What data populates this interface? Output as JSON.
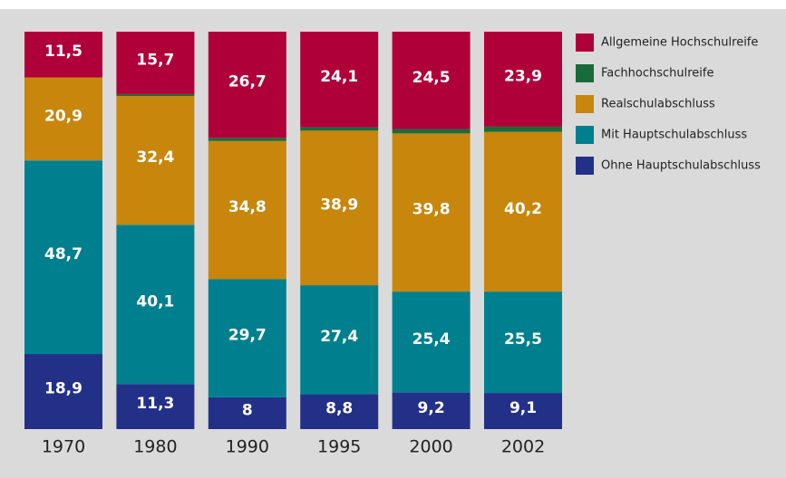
{
  "chart_data": {
    "type": "stacked-bar",
    "categories": [
      "1970",
      "1980",
      "1990",
      "1995",
      "2000",
      "2002"
    ],
    "series": [
      {
        "name": "Allgemeine Hochschulreife",
        "color": "#b0003a",
        "values": [
          11.5,
          15.7,
          26.7,
          24.1,
          24.5,
          23.9
        ],
        "value_labels": [
          "11,5",
          "15,7",
          "26,7",
          "24,1",
          "24,5",
          "23,9"
        ]
      },
      {
        "name": "Fachhochschulreife",
        "color": "#1b6b3a",
        "values": [
          0,
          0.5,
          0.8,
          0.8,
          1.1,
          1.3
        ]
      },
      {
        "name": "Realschulabschluss",
        "color": "#c8860d",
        "values": [
          20.9,
          32.4,
          34.8,
          38.9,
          39.8,
          40.2
        ],
        "value_labels": [
          "20,9",
          "32,4",
          "34,8",
          "38,9",
          "39,8",
          "40,2"
        ]
      },
      {
        "name": "Mit Hauptschulabschluss",
        "color": "#00808f",
        "values": [
          48.7,
          40.1,
          29.7,
          27.4,
          25.4,
          25.5
        ],
        "value_labels": [
          "48,7",
          "40,1",
          "29,7",
          "27,4",
          "25,4",
          "25,5"
        ]
      },
      {
        "name": "Ohne Hauptschulabschluss",
        "color": "#233088",
        "values": [
          18.9,
          11.3,
          8,
          8.8,
          9.2,
          9.1
        ],
        "value_labels": [
          "18,9",
          "11,3",
          "8",
          "8,8",
          "9,2",
          "9,1"
        ]
      }
    ]
  }
}
